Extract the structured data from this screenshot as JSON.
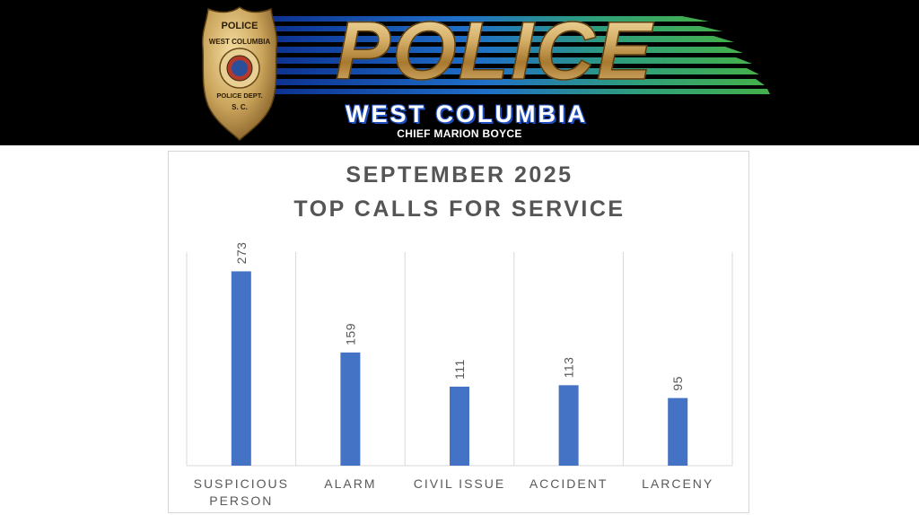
{
  "header": {
    "badge_lines": {
      "top": "POLICE",
      "city": "WEST COLUMBIA",
      "dept": "POLICE DEPT.",
      "state": "S. C."
    },
    "logo_word": "POLICE",
    "city": "WEST COLUMBIA",
    "chief": "CHIEF MARION BOYCE",
    "colors": {
      "background": "#000000",
      "gold": "#d4ad63",
      "stripe_blue": "#1f4fbf",
      "stripe_green": "#3fae49"
    }
  },
  "chart_data": {
    "type": "bar",
    "title": [
      "SEPTEMBER 2025",
      "TOP CALLS FOR SERVICE"
    ],
    "categories": [
      [
        "SUSPICIOUS",
        "PERSON"
      ],
      [
        "ALARM"
      ],
      [
        "CIVIL ISSUE"
      ],
      [
        "ACCIDENT"
      ],
      [
        "LARCENY"
      ]
    ],
    "values": [
      273,
      159,
      111,
      113,
      95
    ],
    "data_labels": [
      "273",
      "159",
      "111",
      "113",
      "95"
    ],
    "ylim": [
      0,
      300
    ],
    "grid": "vertical category separators",
    "bar_color": "#4472c4",
    "xlabel": "",
    "ylabel": ""
  }
}
